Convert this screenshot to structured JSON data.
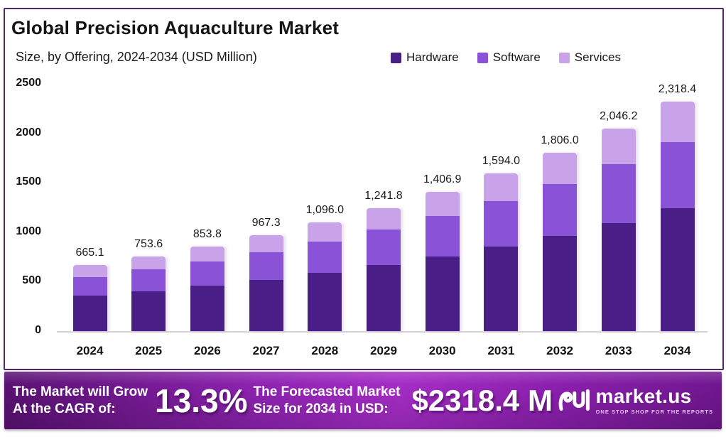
{
  "header": {
    "title": "Global Precision Aquaculture Market",
    "subtitle": "Size, by Offering, 2024-2034 (USD Million)"
  },
  "legend": {
    "items": [
      {
        "label": "Hardware",
        "color": "#491f87"
      },
      {
        "label": "Software",
        "color": "#8a52d6"
      },
      {
        "label": "Services",
        "color": "#c9a3ea"
      }
    ]
  },
  "chart_data": {
    "type": "bar",
    "stacked": true,
    "title": "Global Precision Aquaculture Market",
    "subtitle": "Size, by Offering, 2024-2034 (USD Million)",
    "unit": "USD Million",
    "categories": [
      "2024",
      "2025",
      "2026",
      "2027",
      "2028",
      "2029",
      "2030",
      "2031",
      "2032",
      "2033",
      "2034"
    ],
    "totals": [
      665.1,
      753.6,
      853.8,
      967.3,
      1096.0,
      1241.8,
      1406.9,
      1594.0,
      1806.0,
      2046.2,
      2318.4
    ],
    "total_labels": [
      "665.1",
      "753.6",
      "853.8",
      "967.3",
      "1,096.0",
      "1,241.8",
      "1,406.9",
      "1,594.0",
      "1,806.0",
      "2,046.2",
      "2,318.4"
    ],
    "series": [
      {
        "name": "Hardware",
        "color": "#491f87",
        "values": [
          356,
          403,
          457,
          517,
          586,
          664,
          753,
          853,
          966,
          1095,
          1240
        ]
      },
      {
        "name": "Software",
        "color": "#8a52d6",
        "values": [
          193,
          219,
          248,
          281,
          318,
          360,
          408,
          462,
          524,
          593,
          672
        ]
      },
      {
        "name": "Services",
        "color": "#c9a3ea",
        "values": [
          116,
          132,
          149,
          169,
          192,
          217,
          246,
          279,
          316,
          358,
          406
        ]
      }
    ],
    "ylim": [
      0,
      2500
    ],
    "yticks": [
      0,
      500,
      1000,
      1500,
      2000,
      2500
    ],
    "grid": false,
    "legend_position": "top-right"
  },
  "footer": {
    "cagr_line1": "The Market will Grow",
    "cagr_line2": "At the CAGR of:",
    "cagr_value": "13.3%",
    "forecast_line1": "The Forecasted Market",
    "forecast_line2": "Size for 2034 in USD:",
    "forecast_value": "$2318.4 M",
    "brand": "market.us",
    "brand_tagline": "ONE STOP SHOP FOR THE REPORTS"
  },
  "colors": {
    "hardware": "#491f87",
    "software": "#8a52d6",
    "services": "#c9a3ea",
    "card_border": "#522570",
    "banner_center": "#a52dc6",
    "banner_edge": "#5a1173"
  }
}
